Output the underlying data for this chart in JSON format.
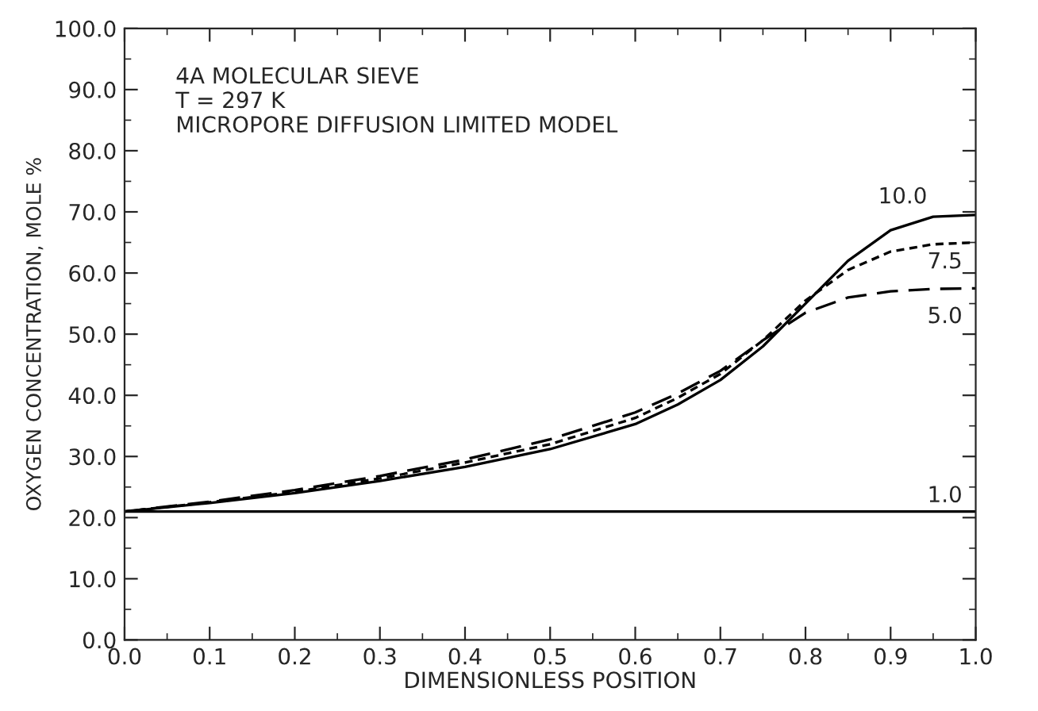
{
  "chart_data": {
    "type": "line",
    "xlabel": "DIMENSIONLESS POSITION",
    "ylabel": "OXYGEN CONCENTRATION, MOLE %",
    "annotations": [
      "4A MOLECULAR SIEVE",
      "T = 297 K",
      "MICROPORE DIFFUSION LIMITED MODEL"
    ],
    "x": [
      0.0,
      0.1,
      0.2,
      0.3,
      0.4,
      0.5,
      0.6,
      0.65,
      0.7,
      0.75,
      0.8,
      0.85,
      0.9,
      0.95,
      1.0
    ],
    "series": [
      {
        "name": "10.0",
        "color": "#000000",
        "line_style": "solid",
        "values": [
          21,
          22.4,
          24,
          26,
          28.3,
          31.2,
          35.3,
          38.5,
          42.5,
          48,
          55,
          62,
          67,
          69.2,
          69.5
        ]
      },
      {
        "name": "7.5",
        "color": "#000000",
        "line_style": "dotted",
        "values": [
          21,
          22.5,
          24.2,
          26.4,
          29,
          32,
          36.3,
          39.6,
          43.5,
          49,
          55.5,
          60.5,
          63.5,
          64.7,
          65
        ]
      },
      {
        "name": "5.0",
        "color": "#000000",
        "line_style": "dashed",
        "values": [
          21,
          22.6,
          24.5,
          26.8,
          29.5,
          32.8,
          37.2,
          40.3,
          44,
          49,
          53.5,
          56,
          57,
          57.4,
          57.5
        ]
      },
      {
        "name": "1.0",
        "color": "#000000",
        "line_style": "solid",
        "values": [
          21,
          21,
          21,
          21,
          21,
          21,
          21,
          21,
          21,
          21,
          21,
          21,
          21,
          21,
          21
        ]
      }
    ],
    "xlim": [
      0,
      1
    ],
    "ylim": [
      0,
      100
    ],
    "xticks": [
      {
        "value": 0,
        "label": "0.0"
      },
      {
        "value": 0.1,
        "label": "0.1"
      },
      {
        "value": 0.2,
        "label": "0.2"
      },
      {
        "value": 0.3,
        "label": "0.3"
      },
      {
        "value": 0.4,
        "label": "0.4"
      },
      {
        "value": 0.5,
        "label": "0.5"
      },
      {
        "value": 0.6,
        "label": "0.6"
      },
      {
        "value": 0.7,
        "label": "0.7"
      },
      {
        "value": 0.8,
        "label": "0.8"
      },
      {
        "value": 0.9,
        "label": "0.9"
      },
      {
        "value": 1,
        "label": "1.0"
      }
    ],
    "yticks": [
      {
        "value": 0,
        "label": "0.0"
      },
      {
        "value": 10,
        "label": "10.0"
      },
      {
        "value": 20,
        "label": "20.0"
      },
      {
        "value": 30,
        "label": "30.0"
      },
      {
        "value": 40,
        "label": "40.0"
      },
      {
        "value": 50,
        "label": "50.0"
      },
      {
        "value": 60,
        "label": "60.0"
      },
      {
        "value": 70,
        "label": "70.0"
      },
      {
        "value": 80,
        "label": "80.0"
      },
      {
        "value": 90,
        "label": "90.0"
      },
      {
        "value": 100,
        "label": "100.0"
      }
    ],
    "grid": false,
    "legend": false,
    "marker": "none"
  }
}
